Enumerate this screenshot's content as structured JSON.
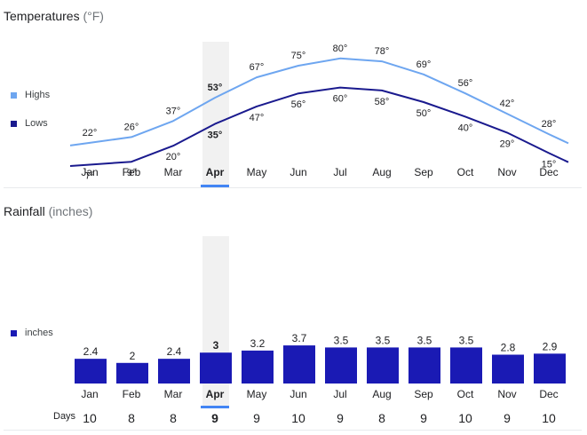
{
  "temperatures": {
    "title": "Temperatures",
    "unit": "(°F)",
    "legend": {
      "highs": "Highs",
      "lows": "Lows"
    },
    "highs_color": "#6ea6f0",
    "lows_color": "#1a1a8e"
  },
  "rainfall": {
    "title": "Rainfall",
    "unit": "(inches)",
    "legend": {
      "inches": "inches"
    },
    "bar_color": "#1a1ab4",
    "days_label": "Days"
  },
  "selected_month": "Apr",
  "accent_color": "#4285f4",
  "chart_data": [
    {
      "type": "line",
      "title": "Temperatures (°F)",
      "categories": [
        "Jan",
        "Feb",
        "Mar",
        "Apr",
        "May",
        "Jun",
        "Jul",
        "Aug",
        "Sep",
        "Oct",
        "Nov",
        "Dec"
      ],
      "series": [
        {
          "name": "Highs",
          "values": [
            22,
            26,
            37,
            53,
            67,
            75,
            80,
            78,
            69,
            56,
            42,
            28
          ],
          "labels": [
            "22°",
            "26°",
            "37°",
            "53°",
            "67°",
            "75°",
            "80°",
            "78°",
            "69°",
            "56°",
            "42°",
            "28°"
          ]
        },
        {
          "name": "Lows",
          "values": [
            7,
            9,
            20,
            35,
            47,
            56,
            60,
            58,
            50,
            40,
            29,
            15
          ],
          "labels": [
            "7°",
            "9°",
            "20°",
            "35°",
            "47°",
            "56°",
            "60°",
            "58°",
            "50°",
            "40°",
            "29°",
            "15°"
          ]
        }
      ],
      "ylim": [
        0,
        85
      ]
    },
    {
      "type": "bar",
      "title": "Rainfall (inches)",
      "categories": [
        "Jan",
        "Feb",
        "Mar",
        "Apr",
        "May",
        "Jun",
        "Jul",
        "Aug",
        "Sep",
        "Oct",
        "Nov",
        "Dec"
      ],
      "series": [
        {
          "name": "inches",
          "values": [
            2.4,
            2,
            2.4,
            3,
            3.2,
            3.7,
            3.5,
            3.5,
            3.5,
            3.5,
            2.8,
            2.9
          ],
          "labels": [
            "2.4",
            "2",
            "2.4",
            "3",
            "3.2",
            "3.7",
            "3.5",
            "3.5",
            "3.5",
            "3.5",
            "2.8",
            "2.9"
          ]
        }
      ],
      "days": [
        "10",
        "8",
        "8",
        "9",
        "9",
        "10",
        "9",
        "8",
        "9",
        "10",
        "9",
        "10"
      ],
      "ylim": [
        0,
        4
      ]
    }
  ]
}
